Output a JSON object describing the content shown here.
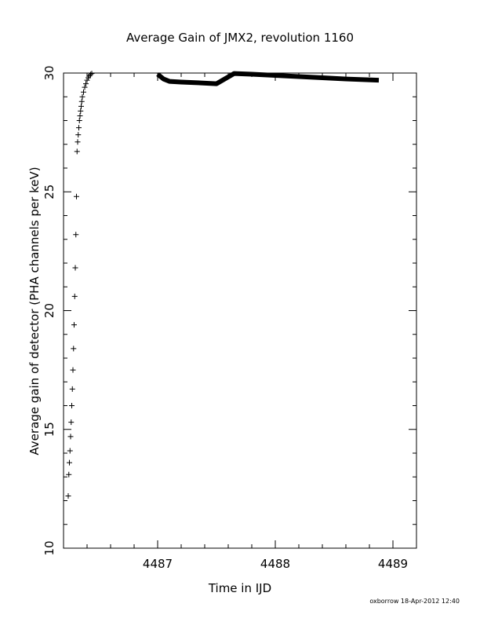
{
  "chart_data": {
    "type": "scatter",
    "title": "Average Gain of JMX2, revolution 1160",
    "xlabel": "Time in IJD",
    "ylabel": "Average gain of detector (PHA channels per keV)",
    "xlim": [
      4486.2,
      4489.2
    ],
    "ylim": [
      10,
      30
    ],
    "x_ticks": [
      4487,
      4488,
      4489
    ],
    "x_tick_labels": [
      "4487",
      "4488",
      "4489"
    ],
    "y_ticks": [
      10,
      15,
      20,
      25,
      30
    ],
    "y_tick_labels": [
      "10",
      "15",
      "20",
      "25",
      "30"
    ],
    "grid": false,
    "legend": "none",
    "series": [
      {
        "marker": "plus",
        "x": [
          4486.24,
          4486.245,
          4486.25,
          4486.255,
          4486.26,
          4486.265,
          4486.27,
          4486.275,
          4486.28,
          4486.285,
          4486.29,
          4486.295,
          4486.3,
          4486.305,
          4486.31,
          4486.315,
          4486.32,
          4486.325,
          4486.33,
          4486.335,
          4486.34,
          4486.345,
          4486.35,
          4486.355,
          4486.36,
          4486.37,
          4486.38,
          4486.39,
          4486.4,
          4486.41,
          4486.42,
          4486.43,
          4486.44
        ],
        "y": [
          12.2,
          13.1,
          13.6,
          14.1,
          14.7,
          15.3,
          16.0,
          16.7,
          17.5,
          18.4,
          19.4,
          20.6,
          21.8,
          23.2,
          24.8,
          26.7,
          27.1,
          27.4,
          27.7,
          28.0,
          28.2,
          28.4,
          28.6,
          28.8,
          29.0,
          29.2,
          29.4,
          29.55,
          29.7,
          29.8,
          29.88,
          29.94,
          29.98
        ]
      },
      {
        "marker": "thick-line",
        "x": [
          4487.0,
          4487.05,
          4487.1,
          4487.2,
          4487.3,
          4487.5,
          4487.65,
          4487.8,
          4488.0,
          4488.2,
          4488.4,
          4488.6,
          4488.88
        ],
        "y": [
          29.95,
          29.75,
          29.65,
          29.62,
          29.6,
          29.55,
          29.98,
          29.95,
          29.9,
          29.85,
          29.8,
          29.75,
          29.7
        ]
      }
    ]
  },
  "footer": "oxborrow 18-Apr-2012 12:40"
}
